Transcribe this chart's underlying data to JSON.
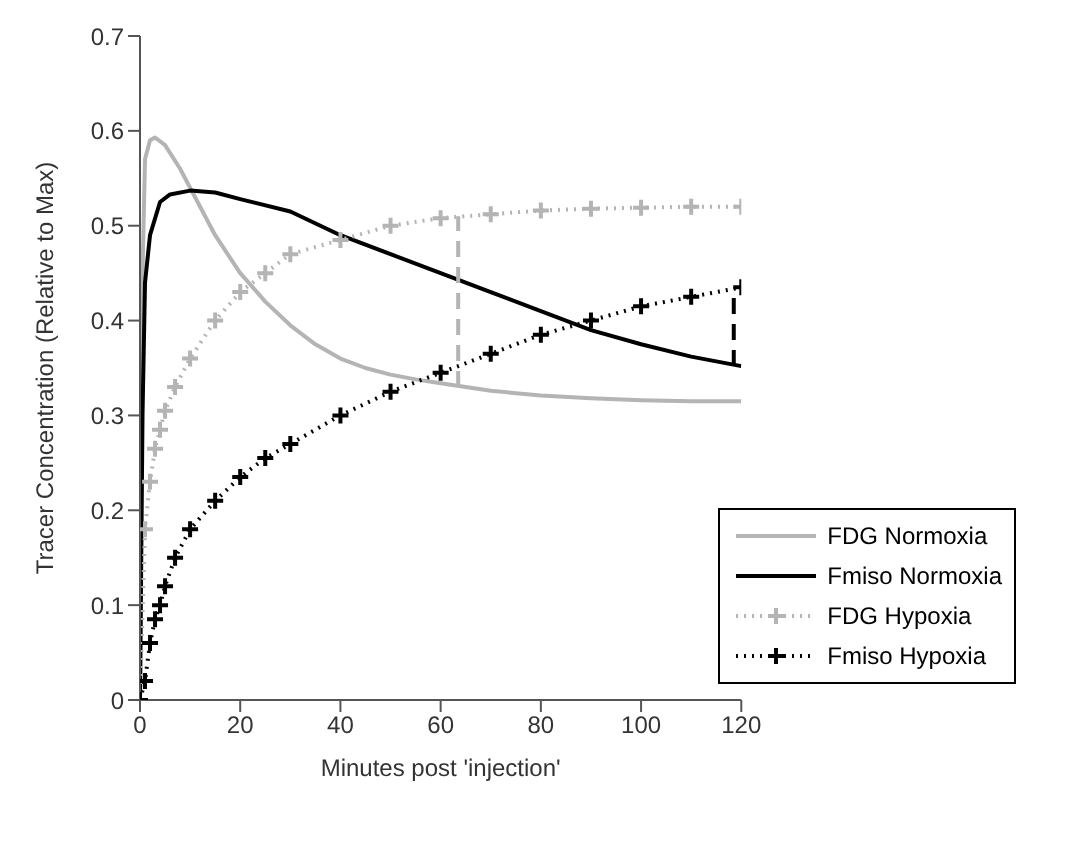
{
  "chart_data": {
    "type": "line",
    "xlabel": "Minutes post 'injection'",
    "ylabel": "Tracer Concentration (Relative to Max)",
    "xlim": [
      0,
      120
    ],
    "xticks": [
      0,
      20,
      40,
      60,
      80,
      100,
      120
    ],
    "ylim": [
      0,
      0.7
    ],
    "yticks": [
      0,
      0.1,
      0.2,
      0.3,
      0.4,
      0.5,
      0.6,
      0.7
    ],
    "grid": false,
    "legend": "bottom right",
    "series": [
      {
        "name": "FDG Normoxia",
        "color": "#b4b4b4",
        "marker": "none",
        "line_style": "solid",
        "x": [
          0,
          0.5,
          1,
          2,
          3,
          5,
          8,
          10,
          15,
          20,
          25,
          30,
          35,
          40,
          45,
          50,
          55,
          60,
          70,
          80,
          90,
          100,
          110,
          120
        ],
        "values": [
          0,
          0.45,
          0.57,
          0.59,
          0.593,
          0.585,
          0.56,
          0.54,
          0.49,
          0.45,
          0.42,
          0.395,
          0.375,
          0.36,
          0.35,
          0.343,
          0.338,
          0.334,
          0.326,
          0.321,
          0.318,
          0.316,
          0.315,
          0.315
        ]
      },
      {
        "name": "Fmiso Normoxia",
        "color": "#000000",
        "marker": "none",
        "line_style": "solid",
        "x": [
          0,
          0.5,
          1,
          2,
          4,
          6,
          10,
          15,
          20,
          30,
          40,
          50,
          60,
          70,
          80,
          90,
          100,
          110,
          120
        ],
        "values": [
          0,
          0.3,
          0.44,
          0.49,
          0.525,
          0.533,
          0.537,
          0.535,
          0.528,
          0.515,
          0.49,
          0.47,
          0.45,
          0.43,
          0.41,
          0.39,
          0.375,
          0.362,
          0.352
        ]
      },
      {
        "name": "FDG Hypoxia",
        "color": "#b4b4b4",
        "marker": "cross",
        "line_style": "dotted",
        "x": [
          0,
          1,
          2,
          3,
          4,
          5,
          7,
          10,
          15,
          20,
          25,
          30,
          40,
          50,
          60,
          70,
          80,
          90,
          100,
          110,
          120
        ],
        "values": [
          0,
          0.18,
          0.23,
          0.265,
          0.285,
          0.305,
          0.33,
          0.36,
          0.4,
          0.43,
          0.45,
          0.47,
          0.485,
          0.5,
          0.508,
          0.512,
          0.516,
          0.518,
          0.519,
          0.52,
          0.52
        ]
      },
      {
        "name": "Fmiso Hypoxia",
        "color": "#000000",
        "marker": "cross",
        "line_style": "dotted",
        "x": [
          0,
          1,
          2,
          3,
          4,
          5,
          7,
          10,
          15,
          20,
          25,
          30,
          40,
          50,
          60,
          70,
          80,
          90,
          100,
          110,
          120
        ],
        "values": [
          0,
          0.02,
          0.06,
          0.085,
          0.1,
          0.12,
          0.15,
          0.18,
          0.21,
          0.235,
          0.255,
          0.27,
          0.3,
          0.325,
          0.345,
          0.365,
          0.385,
          0.4,
          0.415,
          0.425,
          0.435
        ]
      },
      {
        "color": "#b4b4b4",
        "marker": "none",
        "line_style": "dashed",
        "x": [
          63.5,
          63.5
        ],
        "values": [
          0.33,
          0.51
        ]
      },
      {
        "color": "#000000",
        "marker": "none",
        "line_style": "dashed",
        "x": [
          118.5,
          118.5
        ],
        "values": [
          0.352,
          0.432
        ]
      }
    ]
  }
}
